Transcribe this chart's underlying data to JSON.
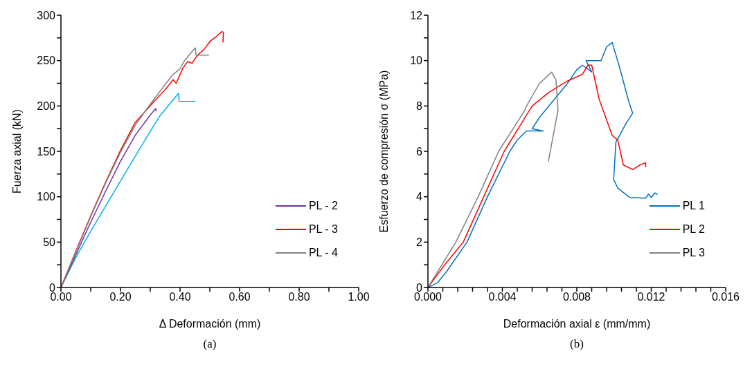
{
  "chart_data": [
    {
      "type": "line",
      "xlabel": "Δ Deformación (mm)",
      "ylabel": "Fuerza axial (kN)",
      "annotations": [
        "(a)"
      ],
      "legend": "bottom right",
      "marker": "none",
      "line_style": "solid",
      "xlim": [
        0,
        1
      ],
      "xticks": [
        {
          "value": 0,
          "label": "0.00"
        },
        {
          "value": 0.1,
          "label": null
        },
        {
          "value": 0.2,
          "label": "0.20"
        },
        {
          "value": 0.3,
          "label": null
        },
        {
          "value": 0.4,
          "label": "0.40"
        },
        {
          "value": 0.5,
          "label": null
        },
        {
          "value": 0.6,
          "label": "0.60"
        },
        {
          "value": 0.7,
          "label": null
        },
        {
          "value": 0.8,
          "label": "0.80"
        },
        {
          "value": 0.9,
          "label": null
        },
        {
          "value": 1,
          "label": "1.00"
        }
      ],
      "ylim": [
        0,
        300
      ],
      "yticks": [
        0,
        {
          "value": 25,
          "label": null
        },
        50,
        {
          "value": 75,
          "label": null
        },
        100,
        {
          "value": 125,
          "label": null
        },
        150,
        {
          "value": 175,
          "label": null
        },
        200,
        {
          "value": 225,
          "label": null
        },
        250,
        {
          "value": 275,
          "label": null
        },
        300
      ],
      "series": [
        {
          "color": "#00b0f0",
          "x": [
            0,
            0.05,
            0.1,
            0.185,
            0.272,
            0.33,
            0.395,
            0.397,
            0.451
          ],
          "values": [
            0,
            33,
            62,
            109,
            157,
            188,
            214,
            205,
            205
          ]
        },
        {
          "name": "PL - 2",
          "color": "#7030a0",
          "x": [
            0,
            0.05,
            0.1,
            0.15,
            0.2,
            0.25,
            0.3,
            0.318,
            0.32
          ],
          "values": [
            0,
            36,
            72,
            106,
            139,
            168,
            190,
            197,
            194
          ]
        },
        {
          "name": "PL - 3",
          "color": "#ff0000",
          "x": [
            0,
            0.05,
            0.1,
            0.15,
            0.2,
            0.25,
            0.313,
            0.35,
            0.377,
            0.387,
            0.41,
            0.426,
            0.44,
            0.459,
            0.48,
            0.503,
            0.52,
            0.541,
            0.546,
            0.544
          ],
          "values": [
            0,
            40,
            79,
            116,
            151,
            182,
            205,
            218,
            229,
            225,
            242,
            249,
            247,
            256,
            262,
            272,
            276,
            282,
            281,
            270
          ]
        },
        {
          "name": "PL - 4",
          "color": "#808080",
          "x": [
            0,
            0.05,
            0.1,
            0.15,
            0.2,
            0.25,
            0.3,
            0.374,
            0.4,
            0.415,
            0.451,
            0.454,
            0.497
          ],
          "values": [
            0,
            39,
            78,
            115,
            149,
            179,
            202,
            234,
            241,
            250,
            264,
            256,
            256
          ]
        }
      ]
    },
    {
      "type": "line",
      "xlabel": "Deformación axial  ε (mm/mm)",
      "ylabel": "Esfuerzo de compresión σ (MPa)",
      "annotations": [
        "(b)"
      ],
      "legend": "bottom right",
      "marker": "none",
      "line_style": "solid",
      "xlim": [
        0,
        0.016
      ],
      "xticks": [
        {
          "value": 0,
          "label": "0.000"
        },
        {
          "value": 0.0008,
          "label": null
        },
        {
          "value": 0.0016,
          "label": null
        },
        {
          "value": 0.0024,
          "label": null
        },
        {
          "value": 0.0032,
          "label": null
        },
        {
          "value": 0.004,
          "label": "0.004"
        },
        {
          "value": 0.0048,
          "label": null
        },
        {
          "value": 0.0056,
          "label": null
        },
        {
          "value": 0.0064,
          "label": null
        },
        {
          "value": 0.0072,
          "label": null
        },
        {
          "value": 0.008,
          "label": "0.008"
        },
        {
          "value": 0.0088,
          "label": null
        },
        {
          "value": 0.0096,
          "label": null
        },
        {
          "value": 0.0104,
          "label": null
        },
        {
          "value": 0.0112,
          "label": null
        },
        {
          "value": 0.012,
          "label": "0.012"
        },
        {
          "value": 0.0128,
          "label": null
        },
        {
          "value": 0.0136,
          "label": null
        },
        {
          "value": 0.0144,
          "label": null
        },
        {
          "value": 0.0152,
          "label": null
        },
        {
          "value": 0.016,
          "label": "0.016"
        }
      ],
      "ylim": [
        0,
        12
      ],
      "yticks": [
        0,
        {
          "value": 1,
          "label": null
        },
        2,
        {
          "value": 3,
          "label": null
        },
        4,
        {
          "value": 5,
          "label": null
        },
        6,
        {
          "value": 7,
          "label": null
        },
        8,
        {
          "value": 9,
          "label": null
        },
        10,
        {
          "value": 11,
          "label": null
        },
        12
      ],
      "series": [
        {
          "name": "PL 1",
          "color": "#0070c0",
          "x": [
            0,
            0.0005,
            0.001,
            0.0021,
            0.0032,
            0.0044,
            0.0048,
            0.0053,
            0.0062,
            0.0056,
            0.006,
            0.007,
            0.0075,
            0.008,
            0.0083,
            0.0088,
            0.0085,
            0.0093,
            0.0096,
            0.0099,
            0.0103,
            0.01077,
            0.011,
            0.01065,
            0.0101,
            0.00998,
            0.0102,
            0.01084,
            0.0117,
            0.01185,
            0.012,
            0.0122,
            0.01234
          ],
          "values": [
            0,
            0.2,
            0.7,
            2,
            4,
            6,
            6.5,
            6.9,
            6.9,
            7.0,
            7.5,
            8.5,
            9.0,
            9.6,
            9.8,
            9.5,
            10.0,
            10.0,
            10.6,
            10.8,
            9.7,
            8.26,
            7.68,
            7.24,
            6.4,
            4.76,
            4.38,
            3.97,
            3.94,
            4.12,
            3.97,
            4.17,
            4.09
          ]
        },
        {
          "name": "PL 2",
          "color": "#ff0000",
          "x": [
            0,
            0.0009,
            0.0019,
            0.003,
            0.0041,
            0.0056,
            0.0065,
            0.0075,
            0.0083,
            0.0086,
            0.0088,
            0.0092,
            0.0099,
            0.0102,
            0.0105,
            0.011,
            0.0114,
            0.0117,
            0.0117
          ],
          "values": [
            0,
            1,
            2,
            4,
            6,
            8,
            8.6,
            9.1,
            9.4,
            9.8,
            9.8,
            8.3,
            6.7,
            6.5,
            5.4,
            5.2,
            5.4,
            5.5,
            5.3
          ]
        },
        {
          "name": "PL 3",
          "color": "#808080",
          "x": [
            0,
            0.0015,
            0.0027,
            0.0038,
            0.0052,
            0.0053,
            0.006,
            0.00665,
            0.00688,
            0.00699,
            0.00647
          ],
          "values": [
            0,
            2,
            4,
            6,
            7.8,
            8,
            9,
            9.49,
            9.14,
            7.82,
            5.55
          ]
        }
      ]
    }
  ]
}
